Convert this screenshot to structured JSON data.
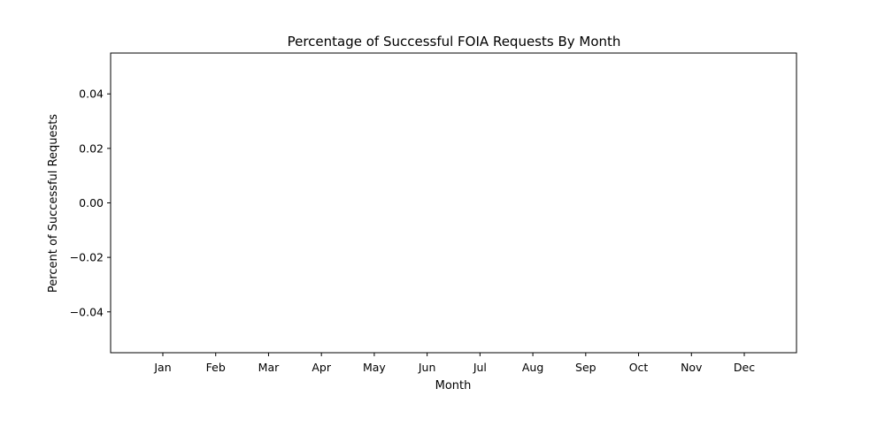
{
  "chart_data": {
    "type": "bar",
    "title": "Percentage of Successful FOIA Requests By Month",
    "xlabel": "Month",
    "ylabel": "Percent of Successful Requests",
    "categories": [
      "Jan",
      "Feb",
      "Mar",
      "Apr",
      "May",
      "Jun",
      "Jul",
      "Aug",
      "Sep",
      "Oct",
      "Nov",
      "Dec"
    ],
    "values": [
      0,
      0,
      0,
      0,
      0,
      0,
      0,
      0,
      0,
      0,
      0,
      0
    ],
    "ylim": [
      -0.055,
      0.055
    ],
    "yticks": [
      0.04,
      0.02,
      0.0,
      -0.02,
      -0.04
    ],
    "ytick_labels": [
      "0.04",
      "0.02",
      "0.00",
      "−0.02",
      "−0.04"
    ],
    "grid": false,
    "colors": {
      "bar": "#1f77b4",
      "axis": "#000000"
    }
  }
}
